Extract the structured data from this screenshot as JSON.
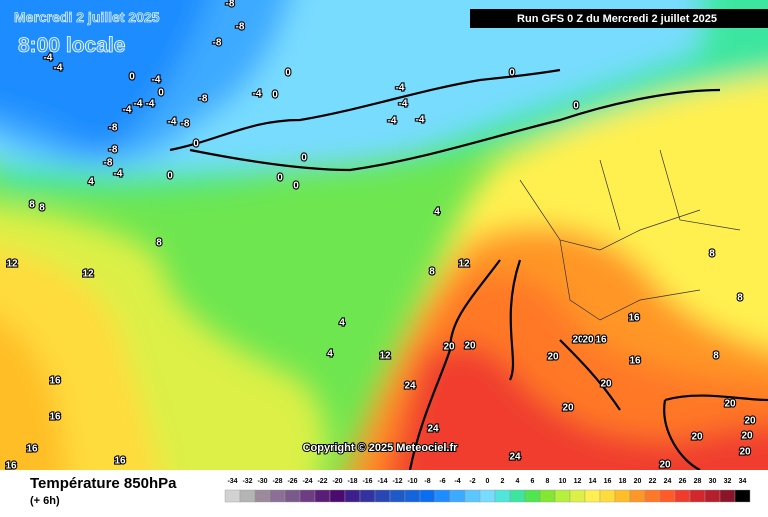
{
  "header": {
    "date": "Mercredi 2 juillet 2025",
    "time": "8:00 locale",
    "run": "Run GFS 0 Z du Mercredi 2 juillet 2025"
  },
  "copyright": "Copyright © 2025 Meteociel.fr",
  "legend": {
    "title": "Température 850hPa",
    "subtitle": "(+ 6h)",
    "ticks": [
      -34,
      -32,
      -30,
      -28,
      -26,
      -24,
      -22,
      -20,
      -18,
      -16,
      -14,
      -12,
      -10,
      -8,
      -6,
      -4,
      -2,
      0,
      2,
      4,
      6,
      8,
      10,
      12,
      14,
      16,
      18,
      20,
      22,
      24,
      26,
      28,
      30,
      32,
      34
    ],
    "colors": [
      "#d2d2d2",
      "#b4b4b4",
      "#9a8a9a",
      "#8c6e96",
      "#7a5a8c",
      "#6e3c82",
      "#5a1e78",
      "#4b0a6e",
      "#3c1e8c",
      "#3232a0",
      "#2846b4",
      "#1e5ac8",
      "#1464dc",
      "#0a6ef0",
      "#1e8cff",
      "#3caaff",
      "#5ac8ff",
      "#78dcff",
      "#50e6dc",
      "#3ce6a0",
      "#50e650",
      "#82e632",
      "#b4f03c",
      "#dcf046",
      "#fff050",
      "#ffdc3c",
      "#ffbe28",
      "#ff9628",
      "#ff7828",
      "#ff5a28",
      "#f03c2d",
      "#d2282d",
      "#b41e2d",
      "#8c1428",
      "#000000"
    ]
  },
  "contour_labels": [
    -8,
    -8,
    -8,
    -4,
    -4,
    0,
    -4,
    0,
    -4,
    -4,
    -4,
    -8,
    -4,
    0,
    0,
    -4,
    -4,
    0,
    -8,
    -4,
    -8,
    -8,
    -8,
    -4,
    0,
    0,
    -4,
    -4,
    0,
    0,
    0,
    0,
    4,
    8,
    8,
    8,
    4,
    8,
    12,
    12,
    12,
    4,
    4,
    12,
    20,
    20,
    20,
    20,
    20,
    16,
    16,
    16,
    8,
    8,
    8,
    24,
    16,
    16,
    16,
    16,
    16,
    20,
    20,
    20,
    20,
    20,
    20,
    20,
    24,
    24,
    20
  ]
}
